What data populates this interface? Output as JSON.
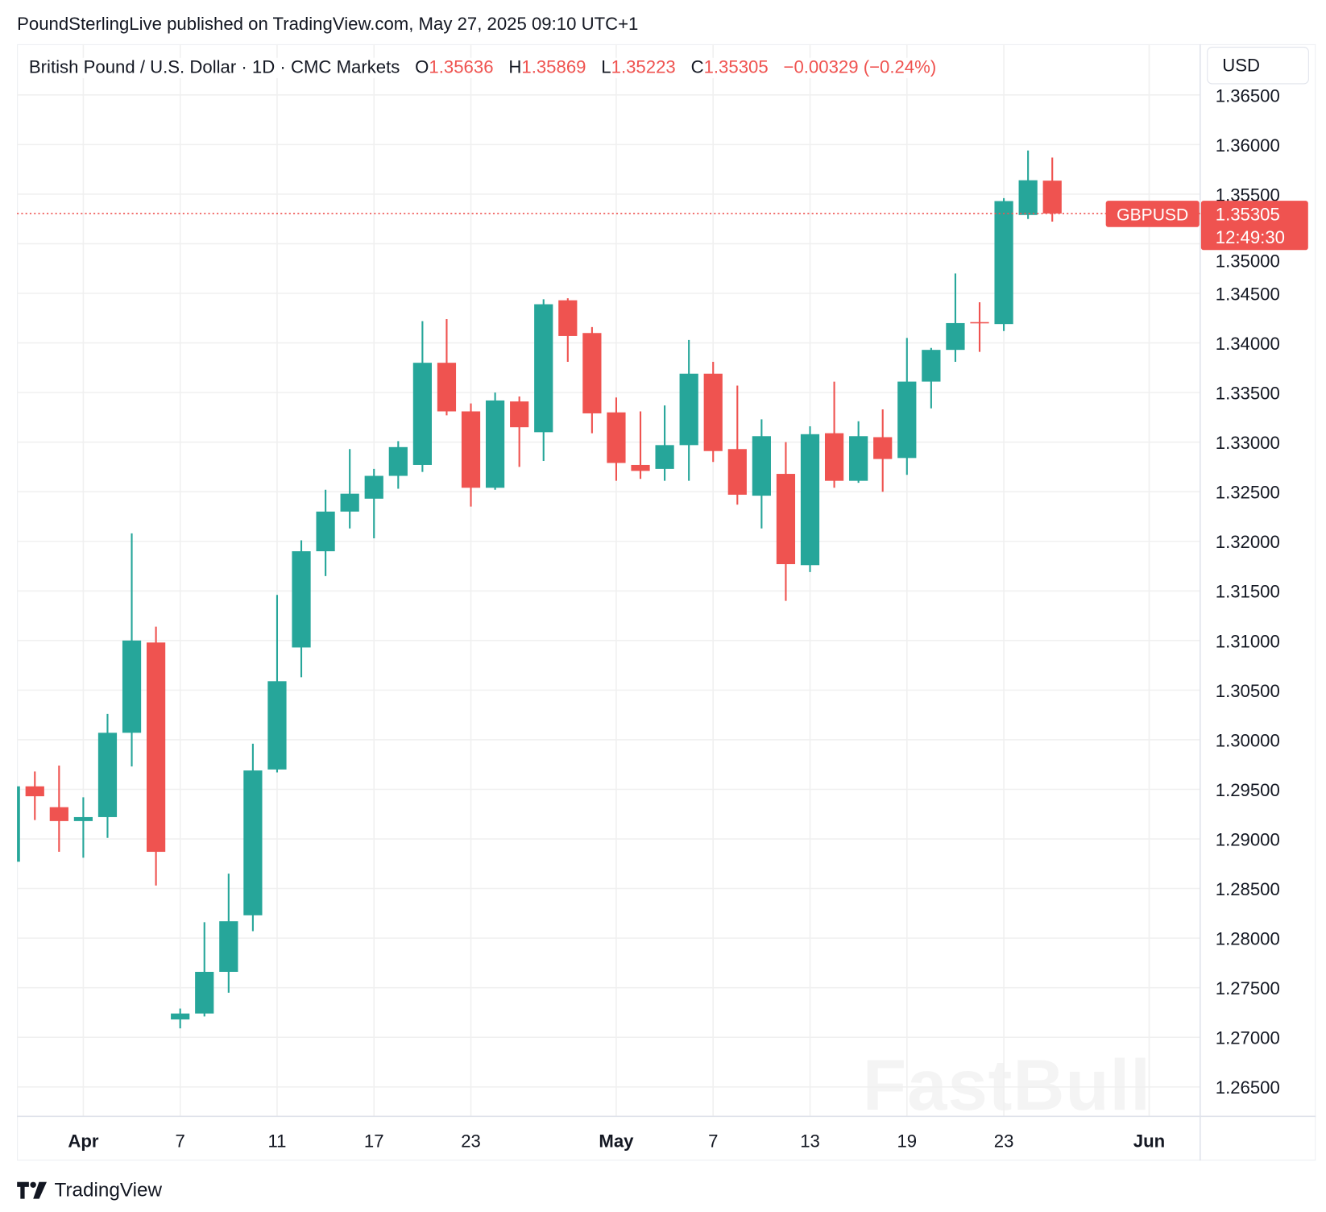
{
  "publisher_line": "PoundSterlingLive published on TradingView.com, May 27, 2025 09:10 UTC+1",
  "legend": {
    "symbol_desc": "British Pound / U.S. Dollar · 1D · CMC Markets",
    "o_label": "O",
    "o": "1.35636",
    "h_label": "H",
    "h": "1.35869",
    "l_label": "L",
    "l": "1.35223",
    "c_label": "C",
    "c": "1.35305",
    "change": "−0.00329 (−0.24%)"
  },
  "currency_button": "USD",
  "price_tag": {
    "symbol": "GBPUSD",
    "price": "1.35305",
    "countdown": "12:49:30"
  },
  "watermark": "FastBull",
  "footer_logo": "TradingView",
  "colors": {
    "up": "#26a69a",
    "down": "#ef5350",
    "grid": "#f0f0f0",
    "text": "#131722"
  },
  "chart_data": {
    "type": "candlestick",
    "symbol": "GBPUSD",
    "interval": "1D",
    "ylim": [
      1.2615,
      1.3665
    ],
    "grid": true,
    "y_ticks": [
      "1.26500",
      "1.27000",
      "1.27500",
      "1.28000",
      "1.28500",
      "1.29000",
      "1.29500",
      "1.30000",
      "1.30500",
      "1.31000",
      "1.31500",
      "1.32000",
      "1.32500",
      "1.33000",
      "1.33500",
      "1.34000",
      "1.34500",
      "1.35000",
      "1.35500",
      "1.36000",
      "1.36500"
    ],
    "x_ticks": [
      {
        "label": "Apr",
        "date": "2025-04-01",
        "bold": true
      },
      {
        "label": "7",
        "date": "2025-04-07"
      },
      {
        "label": "11",
        "date": "2025-04-11"
      },
      {
        "label": "17",
        "date": "2025-04-17"
      },
      {
        "label": "23",
        "date": "2025-04-23"
      },
      {
        "label": "May",
        "date": "2025-05-01",
        "bold": true
      },
      {
        "label": "7",
        "date": "2025-05-07"
      },
      {
        "label": "13",
        "date": "2025-05-13"
      },
      {
        "label": "19",
        "date": "2025-05-19"
      },
      {
        "label": "23",
        "date": "2025-05-23"
      },
      {
        "label": "Jun",
        "date": "2025-06-02",
        "bold": true
      }
    ],
    "last_price": 1.35305,
    "candles": [
      {
        "d": "2025-03-27",
        "o": 1.2877,
        "h": 1.2955,
        "l": 1.2875,
        "c": 1.2953
      },
      {
        "d": "2025-03-28",
        "o": 1.2953,
        "h": 1.2968,
        "l": 1.2919,
        "c": 1.2943
      },
      {
        "d": "2025-03-31",
        "o": 1.2932,
        "h": 1.2974,
        "l": 1.2887,
        "c": 1.2918
      },
      {
        "d": "2025-04-01",
        "o": 1.2918,
        "h": 1.2942,
        "l": 1.2881,
        "c": 1.2922
      },
      {
        "d": "2025-04-02",
        "o": 1.2922,
        "h": 1.3026,
        "l": 1.2901,
        "c": 1.3007
      },
      {
        "d": "2025-04-03",
        "o": 1.3007,
        "h": 1.3208,
        "l": 1.2973,
        "c": 1.31
      },
      {
        "d": "2025-04-04",
        "o": 1.3098,
        "h": 1.3114,
        "l": 1.2853,
        "c": 1.2887
      },
      {
        "d": "2025-04-07",
        "o": 1.2718,
        "h": 1.2729,
        "l": 1.2709,
        "c": 1.2724
      },
      {
        "d": "2025-04-08",
        "o": 1.2724,
        "h": 1.2816,
        "l": 1.2721,
        "c": 1.2766
      },
      {
        "d": "2025-04-09",
        "o": 1.2766,
        "h": 1.2865,
        "l": 1.2745,
        "c": 1.2817
      },
      {
        "d": "2025-04-10",
        "o": 1.2823,
        "h": 1.2996,
        "l": 1.2807,
        "c": 1.2969
      },
      {
        "d": "2025-04-11",
        "o": 1.297,
        "h": 1.3146,
        "l": 1.2967,
        "c": 1.3059
      },
      {
        "d": "2025-04-14",
        "o": 1.3093,
        "h": 1.3201,
        "l": 1.3063,
        "c": 1.319
      },
      {
        "d": "2025-04-15",
        "o": 1.319,
        "h": 1.3252,
        "l": 1.3165,
        "c": 1.323
      },
      {
        "d": "2025-04-16",
        "o": 1.323,
        "h": 1.3293,
        "l": 1.3213,
        "c": 1.3248
      },
      {
        "d": "2025-04-17",
        "o": 1.3243,
        "h": 1.3273,
        "l": 1.3203,
        "c": 1.3266
      },
      {
        "d": "2025-04-18",
        "o": 1.3266,
        "h": 1.3301,
        "l": 1.3253,
        "c": 1.3295
      },
      {
        "d": "2025-04-21",
        "o": 1.3277,
        "h": 1.3422,
        "l": 1.327,
        "c": 1.338
      },
      {
        "d": "2025-04-22",
        "o": 1.338,
        "h": 1.3424,
        "l": 1.3327,
        "c": 1.3331
      },
      {
        "d": "2025-04-23",
        "o": 1.3331,
        "h": 1.3339,
        "l": 1.3235,
        "c": 1.3254
      },
      {
        "d": "2025-04-24",
        "o": 1.3254,
        "h": 1.335,
        "l": 1.3252,
        "c": 1.3342
      },
      {
        "d": "2025-04-25",
        "o": 1.3341,
        "h": 1.3346,
        "l": 1.3275,
        "c": 1.3315
      },
      {
        "d": "2025-04-28",
        "o": 1.331,
        "h": 1.3444,
        "l": 1.3281,
        "c": 1.3439
      },
      {
        "d": "2025-04-29",
        "o": 1.3443,
        "h": 1.3445,
        "l": 1.3381,
        "c": 1.3407
      },
      {
        "d": "2025-04-30",
        "o": 1.341,
        "h": 1.3416,
        "l": 1.3309,
        "c": 1.3329
      },
      {
        "d": "2025-05-01",
        "o": 1.333,
        "h": 1.3345,
        "l": 1.3261,
        "c": 1.3279
      },
      {
        "d": "2025-05-02",
        "o": 1.3277,
        "h": 1.3331,
        "l": 1.3263,
        "c": 1.3271
      },
      {
        "d": "2025-05-05",
        "o": 1.3273,
        "h": 1.3337,
        "l": 1.3261,
        "c": 1.3297
      },
      {
        "d": "2025-05-06",
        "o": 1.3297,
        "h": 1.3403,
        "l": 1.3261,
        "c": 1.3369
      },
      {
        "d": "2025-05-07",
        "o": 1.3369,
        "h": 1.3381,
        "l": 1.328,
        "c": 1.3291
      },
      {
        "d": "2025-05-08",
        "o": 1.3293,
        "h": 1.3357,
        "l": 1.3237,
        "c": 1.3247
      },
      {
        "d": "2025-05-09",
        "o": 1.3246,
        "h": 1.3323,
        "l": 1.3213,
        "c": 1.3306
      },
      {
        "d": "2025-05-12",
        "o": 1.3268,
        "h": 1.33,
        "l": 1.314,
        "c": 1.3177
      },
      {
        "d": "2025-05-13",
        "o": 1.3176,
        "h": 1.3316,
        "l": 1.3169,
        "c": 1.3308
      },
      {
        "d": "2025-05-14",
        "o": 1.3309,
        "h": 1.3361,
        "l": 1.3254,
        "c": 1.3261
      },
      {
        "d": "2025-05-15",
        "o": 1.3261,
        "h": 1.3321,
        "l": 1.3259,
        "c": 1.3306
      },
      {
        "d": "2025-05-16",
        "o": 1.3305,
        "h": 1.3333,
        "l": 1.325,
        "c": 1.3283
      },
      {
        "d": "2025-05-19",
        "o": 1.3284,
        "h": 1.3405,
        "l": 1.3267,
        "c": 1.3361
      },
      {
        "d": "2025-05-20",
        "o": 1.3361,
        "h": 1.3395,
        "l": 1.3334,
        "c": 1.3393
      },
      {
        "d": "2025-05-21",
        "o": 1.3393,
        "h": 1.347,
        "l": 1.3381,
        "c": 1.342
      },
      {
        "d": "2025-05-22",
        "o": 1.3421,
        "h": 1.3441,
        "l": 1.3391,
        "c": 1.342
      },
      {
        "d": "2025-05-23",
        "o": 1.3419,
        "h": 1.3546,
        "l": 1.3412,
        "c": 1.3543
      },
      {
        "d": "2025-05-26",
        "o": 1.3529,
        "h": 1.3594,
        "l": 1.3525,
        "c": 1.3564
      },
      {
        "d": "2025-05-27",
        "o": 1.35636,
        "h": 1.35869,
        "l": 1.35223,
        "c": 1.35305
      }
    ]
  }
}
